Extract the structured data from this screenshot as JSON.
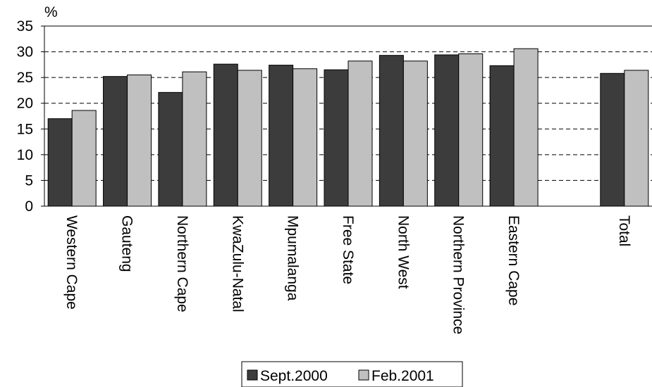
{
  "chart_data": {
    "type": "bar",
    "ylabel": "%",
    "ylim": [
      0,
      35
    ],
    "yticks": [
      0,
      5,
      10,
      15,
      20,
      25,
      30,
      35
    ],
    "grid": "horizontal-dashed",
    "legend_position": "bottom",
    "categories": [
      "Western Cape",
      "Gauteng",
      "Northern Cape",
      "KwaZulu-Natal",
      "Mpumalanga",
      "Free State",
      "North West",
      "Northern Province",
      "Eastern Cape",
      "",
      "Total"
    ],
    "series": [
      {
        "name": "Sept.2000",
        "color": "#3c3c3c",
        "values": [
          17.0,
          25.2,
          22.1,
          27.6,
          27.4,
          26.5,
          29.3,
          29.4,
          27.3,
          null,
          25.8
        ]
      },
      {
        "name": "Feb.2001",
        "color": "#c0c0c0",
        "values": [
          18.6,
          25.5,
          26.1,
          26.4,
          26.7,
          28.2,
          28.2,
          29.6,
          30.6,
          null,
          26.4
        ]
      }
    ]
  }
}
